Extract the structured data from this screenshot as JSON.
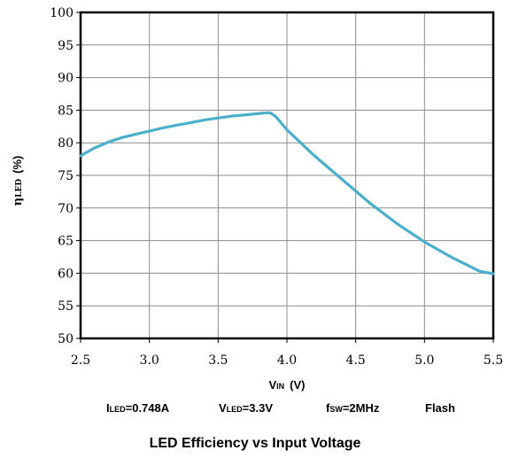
{
  "chart_data": {
    "type": "line",
    "title": "",
    "caption": "LED Efficiency vs Input Voltage",
    "xlabel": "V",
    "xlabel_sub": "IN",
    "xlabel_unit": "(V)",
    "ylabel": "η",
    "ylabel_sub": "LED",
    "ylabel_unit": "(%)",
    "conditions": [
      {
        "main": "I",
        "sub": "LED",
        "rest": "=0.748A"
      },
      {
        "main": "V",
        "sub": "LED",
        "rest": "=3.3V"
      },
      {
        "main": "f",
        "sub": "SW",
        "rest": "=2MHz"
      },
      {
        "main": "Flash",
        "sub": "",
        "rest": ""
      }
    ],
    "xlim": [
      2.5,
      5.5
    ],
    "ylim": [
      50,
      100
    ],
    "xticks": [
      "2.5",
      "3.0",
      "3.5",
      "4.0",
      "4.5",
      "5.0",
      "5.5"
    ],
    "yticks": [
      "50",
      "55",
      "60",
      "65",
      "70",
      "75",
      "80",
      "85",
      "90",
      "95",
      "100"
    ],
    "grid": true,
    "series": [
      {
        "color": "#4BAFCC",
        "x": [
          2.5,
          2.6,
          2.7,
          2.8,
          2.9,
          3.0,
          3.1,
          3.2,
          3.3,
          3.4,
          3.5,
          3.6,
          3.7,
          3.8,
          3.85,
          3.88,
          3.92,
          4.0,
          4.2,
          4.4,
          4.6,
          4.8,
          5.0,
          5.2,
          5.4,
          5.5
        ],
        "y": [
          78.0,
          79.2,
          80.1,
          80.8,
          81.3,
          81.8,
          82.3,
          82.7,
          83.1,
          83.5,
          83.8,
          84.1,
          84.3,
          84.5,
          84.6,
          84.6,
          84.0,
          82.0,
          78.0,
          74.4,
          70.8,
          67.6,
          64.8,
          62.4,
          60.3,
          59.9
        ]
      }
    ]
  }
}
